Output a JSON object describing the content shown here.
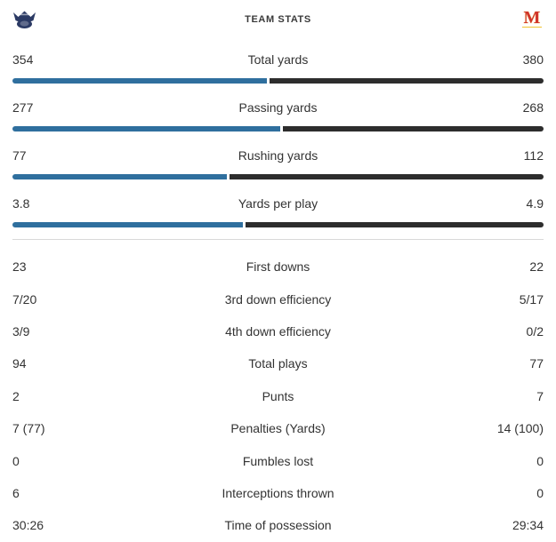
{
  "header": {
    "title": "TEAM STATS",
    "left_team": {
      "logo": "crown-crest-logo",
      "color": "#2b3a64"
    },
    "right_team": {
      "logo": "maryland-m-logo",
      "letter": "M",
      "color": "#d0342c"
    }
  },
  "colors": {
    "left_bar": "#2f6f9e",
    "right_bar": "#2d2d2d",
    "text": "#333333",
    "divider": "#d9d9d9"
  },
  "stats": {
    "bar_rows": [
      {
        "label": "Total yards",
        "left": "354",
        "right": "380",
        "left_num": 354,
        "right_num": 380
      },
      {
        "label": "Passing yards",
        "left": "277",
        "right": "268",
        "left_num": 277,
        "right_num": 268
      },
      {
        "label": "Rushing yards",
        "left": "77",
        "right": "112",
        "left_num": 77,
        "right_num": 112
      },
      {
        "label": "Yards per play",
        "left": "3.8",
        "right": "4.9",
        "left_num": 3.8,
        "right_num": 4.9
      }
    ],
    "plain_rows": [
      {
        "label": "First downs",
        "left": "23",
        "right": "22"
      },
      {
        "label": "3rd down efficiency",
        "left": "7/20",
        "right": "5/17"
      },
      {
        "label": "4th down efficiency",
        "left": "3/9",
        "right": "0/2"
      },
      {
        "label": "Total plays",
        "left": "94",
        "right": "77"
      },
      {
        "label": "Punts",
        "left": "2",
        "right": "7"
      },
      {
        "label": "Penalties (Yards)",
        "left": "7 (77)",
        "right": "14 (100)"
      },
      {
        "label": "Fumbles lost",
        "left": "0",
        "right": "0"
      },
      {
        "label": "Interceptions thrown",
        "left": "6",
        "right": "0"
      },
      {
        "label": "Time of possession",
        "left": "30:26",
        "right": "29:34"
      }
    ]
  }
}
